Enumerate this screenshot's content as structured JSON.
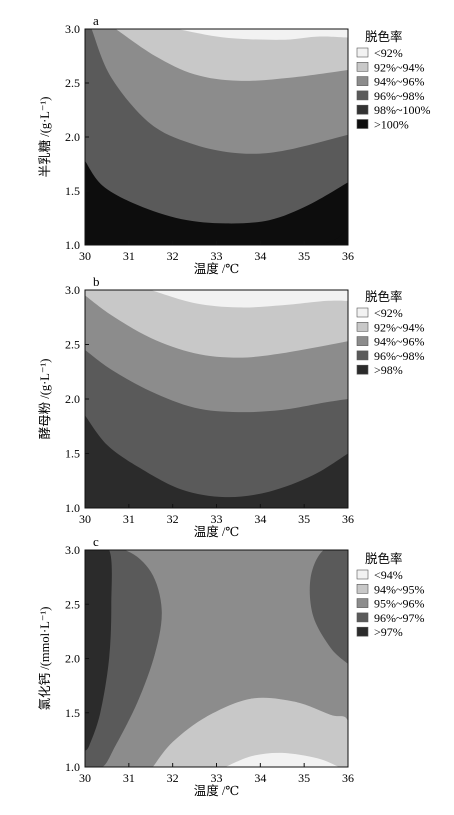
{
  "chart_data": [
    {
      "type": "contour",
      "panel_label": "a",
      "xlabel": "温度 /℃",
      "ylabel": "半乳糖 /(g·L⁻¹)",
      "x_ticks": [
        "30",
        "31",
        "32",
        "33",
        "34",
        "35",
        "36"
      ],
      "y_ticks": [
        "1.0",
        "1.5",
        "2.0",
        "2.5",
        "3.0"
      ],
      "xlim": [
        30,
        36
      ],
      "ylim": [
        1.0,
        3.0
      ],
      "legend_title": "脱色率",
      "levels": [
        {
          "label": "<92%",
          "color": "#f2f2f2"
        },
        {
          "label": "92%~94%",
          "color": "#c8c8c8"
        },
        {
          "label": "94%~96%",
          "color": "#8c8c8c"
        },
        {
          "label": "96%~98%",
          "color": "#5a5a5a"
        },
        {
          "label": "98%~100%",
          "color": "#333333"
        },
        {
          "label": ">100%",
          "color": "#0d0d0d"
        }
      ],
      "boundaries": [
        [
          [
            32.1,
            3.0
          ],
          [
            33.2,
            2.92
          ],
          [
            34.5,
            2.9
          ],
          [
            35.3,
            2.93
          ],
          [
            36,
            2.92
          ]
        ],
        [
          [
            30.7,
            3.0
          ],
          [
            31.6,
            2.75
          ],
          [
            32.5,
            2.58
          ],
          [
            33.5,
            2.52
          ],
          [
            34.7,
            2.55
          ],
          [
            36,
            2.62
          ]
        ],
        [
          [
            30.15,
            3.0
          ],
          [
            30.6,
            2.55
          ],
          [
            31.5,
            2.12
          ],
          [
            32.5,
            1.93
          ],
          [
            33.5,
            1.85
          ],
          [
            34.5,
            1.87
          ],
          [
            36,
            2.02
          ]
        ],
        [
          [
            30.0,
            1.78
          ],
          [
            30.4,
            1.55
          ],
          [
            31.2,
            1.37
          ],
          [
            32.2,
            1.24
          ],
          [
            33.2,
            1.2
          ],
          [
            34.2,
            1.23
          ],
          [
            35.1,
            1.37
          ],
          [
            36,
            1.58
          ]
        ],
        [
          [
            35.35,
            1.0
          ],
          [
            35.75,
            1.06
          ],
          [
            36,
            1.16
          ]
        ]
      ]
    },
    {
      "type": "contour",
      "panel_label": "b",
      "xlabel": "温度 /℃",
      "ylabel": "酵母粉 /(g·L⁻¹)",
      "x_ticks": [
        "30",
        "31",
        "32",
        "33",
        "34",
        "35",
        "36"
      ],
      "y_ticks": [
        "1.0",
        "1.5",
        "2.0",
        "2.5",
        "3.0"
      ],
      "xlim": [
        30,
        36
      ],
      "ylim": [
        1.0,
        3.0
      ],
      "legend_title": "脱色率",
      "levels": [
        {
          "label": "<92%",
          "color": "#f2f2f2"
        },
        {
          "label": "92%~94%",
          "color": "#c8c8c8"
        },
        {
          "label": "94%~96%",
          "color": "#8c8c8c"
        },
        {
          "label": "96%~98%",
          "color": "#5a5a5a"
        },
        {
          "label": ">98%",
          "color": "#2b2b2b"
        }
      ],
      "boundaries": [
        [
          [
            31.5,
            3.0
          ],
          [
            32.5,
            2.88
          ],
          [
            33.5,
            2.84
          ],
          [
            34.5,
            2.86
          ],
          [
            35.5,
            2.9
          ],
          [
            36,
            2.9
          ]
        ],
        [
          [
            30.0,
            2.95
          ],
          [
            30.6,
            2.77
          ],
          [
            31.5,
            2.56
          ],
          [
            32.5,
            2.42
          ],
          [
            33.5,
            2.38
          ],
          [
            34.5,
            2.42
          ],
          [
            36,
            2.53
          ]
        ],
        [
          [
            30.0,
            2.45
          ],
          [
            30.6,
            2.27
          ],
          [
            31.5,
            2.07
          ],
          [
            32.5,
            1.92
          ],
          [
            33.5,
            1.88
          ],
          [
            34.5,
            1.9
          ],
          [
            35.5,
            1.97
          ],
          [
            36,
            2.0
          ]
        ],
        [
          [
            30.0,
            1.85
          ],
          [
            30.5,
            1.58
          ],
          [
            31.2,
            1.38
          ],
          [
            32.2,
            1.17
          ],
          [
            33.2,
            1.1
          ],
          [
            34.2,
            1.15
          ],
          [
            35.2,
            1.3
          ],
          [
            36,
            1.5
          ]
        ]
      ]
    },
    {
      "type": "contour",
      "panel_label": "c",
      "xlabel": "温度 /℃",
      "ylabel": "氯化钙 /(mmol·L⁻¹)",
      "x_ticks": [
        "30",
        "31",
        "32",
        "33",
        "34",
        "35",
        "36"
      ],
      "y_ticks": [
        "1.0",
        "1.5",
        "2.0",
        "2.5",
        "3.0"
      ],
      "xlim": [
        30,
        36
      ],
      "ylim": [
        1.0,
        3.0
      ],
      "legend_title": "脱色率",
      "levels": [
        {
          "label": "<94%",
          "color": "#f2f2f2"
        },
        {
          "label": "94%~95%",
          "color": "#c8c8c8"
        },
        {
          "label": "95%~96%",
          "color": "#8c8c8c"
        },
        {
          "label": "96%~97%",
          "color": "#5a5a5a"
        },
        {
          "label": ">97%",
          "color": "#2b2b2b"
        }
      ]
    }
  ]
}
